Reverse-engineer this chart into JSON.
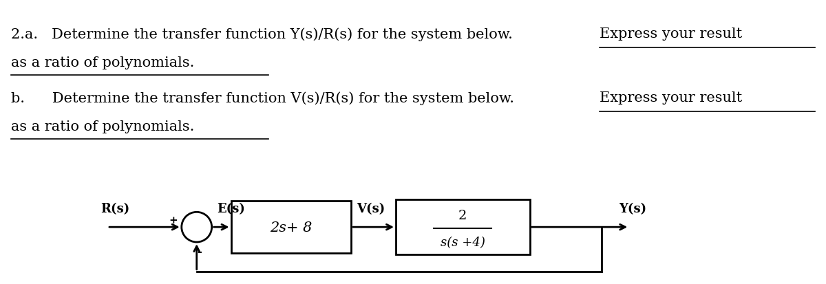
{
  "bg_color": "#ffffff",
  "text_color": "#000000",
  "block1_label": "2s+ 8",
  "block2_num": "2",
  "block2_den": "s(s +4)",
  "signal_R": "R(s)",
  "signal_E": "E(s)",
  "signal_V": "V(s)",
  "signal_Y": "Y(s)",
  "plus_sign": "+",
  "minus_sign": "-",
  "font_size_text": 15,
  "font_size_block": 14,
  "font_size_signal": 13
}
